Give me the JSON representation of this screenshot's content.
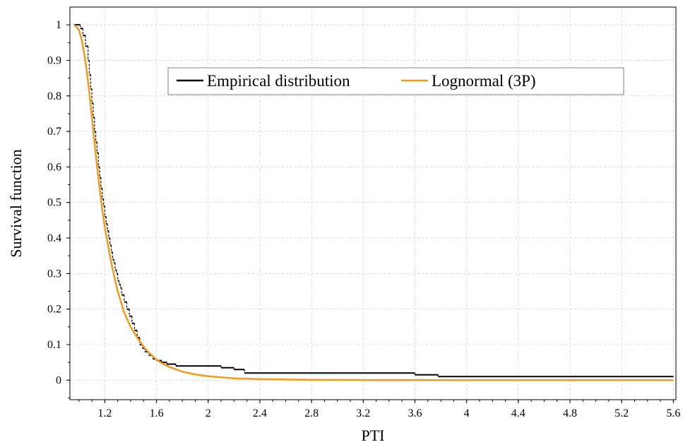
{
  "chart_data": {
    "type": "line",
    "xlabel": "PTI",
    "ylabel": "Survival function",
    "xlim": [
      0.93,
      5.62
    ],
    "ylim": [
      -0.055,
      1.05
    ],
    "x_ticks": [
      1.2,
      1.6,
      2,
      2.4,
      2.8,
      3.2,
      3.6,
      4,
      4.4,
      4.8,
      5.2,
      5.6
    ],
    "x_tick_labels": [
      "1.2",
      "1.6",
      "2",
      "2.4",
      "2.8",
      "3.2",
      "3.6",
      "4",
      "4.4",
      "4.8",
      "5.2",
      "5.6"
    ],
    "y_ticks": [
      0,
      0.1,
      0.2,
      0.3,
      0.4,
      0.5,
      0.6,
      0.7,
      0.8,
      0.9,
      1
    ],
    "y_tick_labels": [
      "0",
      "0.1",
      "0.2",
      "0.3",
      "0.4",
      "0.5",
      "0.6",
      "0.7",
      "0.8",
      "0.9",
      "1"
    ],
    "grid": true,
    "legend_position": "top-center",
    "series": [
      {
        "name": "Empirical distribution",
        "style": "step",
        "color": "#000000",
        "x": [
          0.96,
          1.01,
          1.03,
          1.05,
          1.07,
          1.08,
          1.09,
          1.1,
          1.11,
          1.12,
          1.13,
          1.14,
          1.15,
          1.16,
          1.17,
          1.18,
          1.19,
          1.2,
          1.21,
          1.22,
          1.23,
          1.24,
          1.25,
          1.26,
          1.27,
          1.28,
          1.29,
          1.3,
          1.31,
          1.32,
          1.33,
          1.35,
          1.37,
          1.39,
          1.41,
          1.43,
          1.45,
          1.47,
          1.49,
          1.51,
          1.54,
          1.57,
          1.6,
          1.64,
          1.68,
          1.75,
          2.1,
          2.2,
          2.28,
          3.6,
          3.78,
          5.6
        ],
        "y": [
          1.0,
          0.99,
          0.97,
          0.94,
          0.9,
          0.86,
          0.82,
          0.78,
          0.74,
          0.7,
          0.67,
          0.64,
          0.6,
          0.57,
          0.54,
          0.51,
          0.49,
          0.46,
          0.44,
          0.42,
          0.4,
          0.38,
          0.36,
          0.34,
          0.33,
          0.31,
          0.3,
          0.28,
          0.27,
          0.26,
          0.24,
          0.22,
          0.2,
          0.18,
          0.16,
          0.14,
          0.12,
          0.1,
          0.09,
          0.08,
          0.07,
          0.06,
          0.055,
          0.05,
          0.045,
          0.04,
          0.035,
          0.03,
          0.02,
          0.015,
          0.01,
          0.01
        ]
      },
      {
        "name": "Lognormal (3P)",
        "style": "line",
        "color": "#f39a1b",
        "x": [
          0.96,
          0.98,
          1.0,
          1.02,
          1.04,
          1.06,
          1.08,
          1.1,
          1.12,
          1.14,
          1.16,
          1.18,
          1.2,
          1.22,
          1.25,
          1.28,
          1.3,
          1.35,
          1.4,
          1.45,
          1.5,
          1.55,
          1.6,
          1.65,
          1.7,
          1.8,
          1.9,
          2.0,
          2.2,
          2.4,
          2.6,
          2.8,
          3.2,
          3.6,
          4.0,
          4.4,
          4.8,
          5.2,
          5.6
        ],
        "y": [
          1.0,
          0.995,
          0.985,
          0.96,
          0.92,
          0.87,
          0.81,
          0.74,
          0.67,
          0.6,
          0.54,
          0.48,
          0.43,
          0.39,
          0.33,
          0.28,
          0.25,
          0.19,
          0.15,
          0.12,
          0.094,
          0.074,
          0.058,
          0.046,
          0.037,
          0.024,
          0.016,
          0.011,
          0.005,
          0.003,
          0.002,
          0.001,
          0.0005,
          0.0003,
          0.0002,
          0.0001,
          0.0001,
          0.0001,
          0.0001
        ]
      }
    ]
  }
}
